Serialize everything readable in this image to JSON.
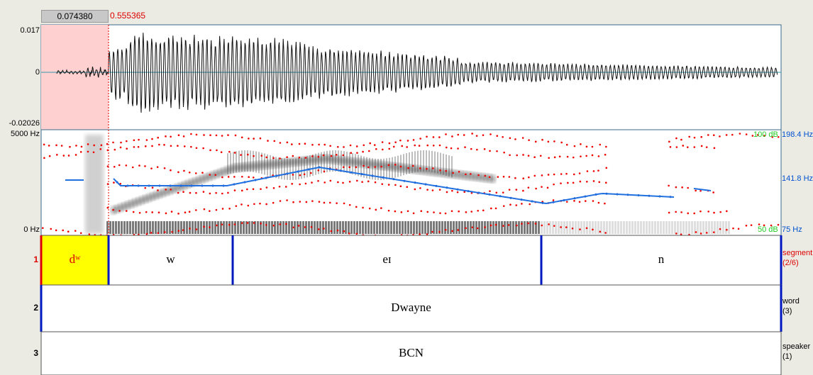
{
  "selection": {
    "start": "0.074380",
    "end": "0.555365"
  },
  "waveform": {
    "max": "0.017",
    "zero": "0",
    "min": "-0.02026"
  },
  "spectrogram": {
    "freq_max": "5000 Hz",
    "freq_min": "0 Hz",
    "db_max": "100 dB",
    "db_min": "50 dB",
    "pitch_max": "198.4 Hz",
    "pitch_mid": "141.8 Hz",
    "pitch_min": "75 Hz"
  },
  "tiers": [
    {
      "number": "1",
      "name": "segment",
      "count": "(2/6)",
      "intervals": [
        "dʷ",
        "w",
        "eɪ",
        "n"
      ]
    },
    {
      "number": "2",
      "name": "word",
      "count": "(3)",
      "intervals": [
        "Dwayne"
      ]
    },
    {
      "number": "3",
      "name": "speaker",
      "count": "(1)",
      "intervals": [
        "BCN"
      ]
    }
  ]
}
